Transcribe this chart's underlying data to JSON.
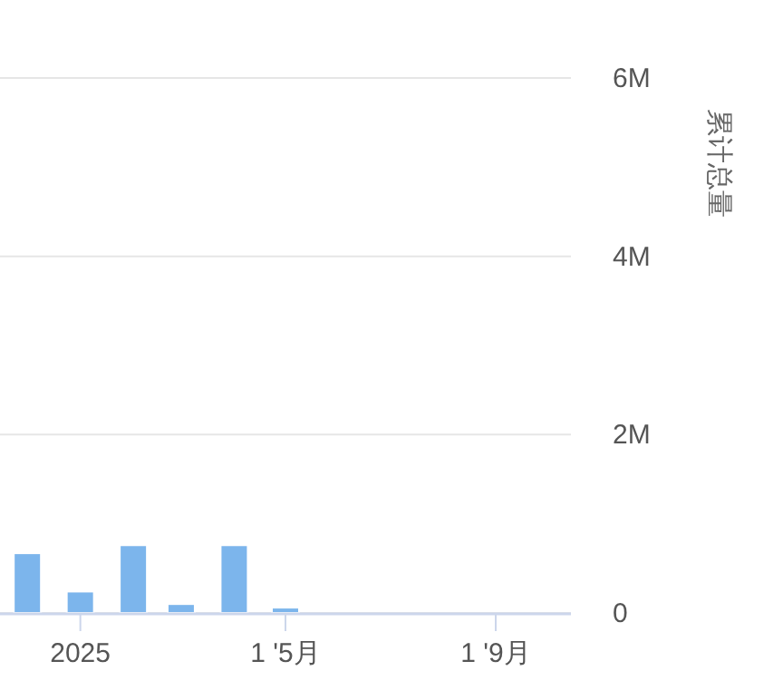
{
  "chart_data": {
    "type": "bar",
    "ylabel": "累计总量",
    "x": [
      "2024-12",
      "2025-01",
      "2025-02",
      "2025-03",
      "2025-04",
      "2025-05"
    ],
    "values": [
      670000,
      240000,
      760000,
      100000,
      760000,
      60000
    ],
    "color": "#7cb5ec",
    "xlim": [
      "2024-11-15",
      "2025-10-15"
    ],
    "xticks": [
      {
        "value": "2025-01",
        "label": "2025"
      },
      {
        "value": "2025-05",
        "label": "1 '5月"
      },
      {
        "value": "2025-09",
        "label": "1 '9月"
      }
    ],
    "ylim": [
      0,
      6000000
    ],
    "yticks": [
      {
        "value": 0,
        "label": "0"
      },
      {
        "value": 2000000,
        "label": "2M"
      },
      {
        "value": 4000000,
        "label": "4M"
      },
      {
        "value": 6000000,
        "label": "6M"
      }
    ],
    "grid": "y"
  }
}
